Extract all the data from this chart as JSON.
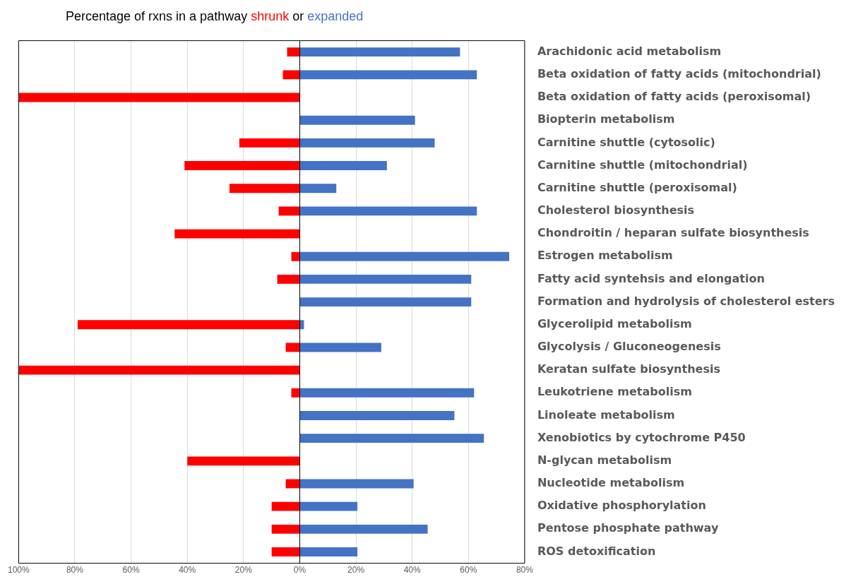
{
  "chart_data": {
    "type": "bar",
    "orientation": "horizontal",
    "stacked": true,
    "title": "Percentage of rxns in a pathway",
    "annotations": [
      "or"
    ],
    "legend": "top",
    "categories": [
      "Arachidonic acid metabolism",
      "Beta oxidation of fatty acids (mitochondrial)",
      "Beta oxidation of fatty acids (peroxisomal)",
      "Biopterin metabolism",
      "Carnitine shuttle (cytosolic)",
      "Carnitine shuttle (mitochondrial)",
      "Carnitine shuttle (peroxisomal)",
      "Cholesterol biosynthesis",
      "Chondroitin / heparan sulfate biosynthesis",
      "Estrogen metabolism",
      "Fatty acid syntehsis and elongation",
      "Formation and hydrolysis of cholesterol esters",
      "Glycerolipid metabolism",
      "Glycolysis / Gluconeogenesis",
      "Keratan sulfate biosynthesis",
      "Leukotriene metabolism",
      "Linoleate metabolism",
      "Xenobiotics by cytochrome P450",
      "N-glycan metabolism",
      "Nucleotide metabolism",
      "Oxidative phosphorylation",
      "Pentose phosphate pathway",
      "ROS detoxification"
    ],
    "series": [
      {
        "name": "shrunk",
        "color": "#ff0000",
        "values": [
          -4.5,
          -6,
          -100,
          null,
          -21.5,
          -41,
          -25,
          -7.5,
          -44.5,
          -3,
          -8,
          null,
          -79,
          -5,
          -100,
          -3,
          null,
          null,
          -40,
          -5,
          -10,
          -10,
          -10
        ]
      },
      {
        "name": "expanded",
        "color": "#4472c4",
        "values": [
          57,
          63,
          null,
          41,
          48,
          31,
          13,
          63,
          null,
          74.5,
          61,
          61,
          1.5,
          29,
          null,
          62,
          55,
          65.5,
          null,
          40.5,
          20.5,
          45.5,
          20.5
        ]
      }
    ],
    "xlim": [
      -100,
      80
    ],
    "xticks": [
      {
        "value": -100,
        "label": "100%"
      },
      {
        "value": -80,
        "label": "80%"
      },
      {
        "value": -60,
        "label": "60%"
      },
      {
        "value": -40,
        "label": "40%"
      },
      {
        "value": -20,
        "label": "20%"
      },
      {
        "value": 0,
        "label": "0%"
      },
      {
        "value": 20,
        "label": "20%"
      },
      {
        "value": 40,
        "label": "40%"
      },
      {
        "value": 60,
        "label": "60%"
      },
      {
        "value": 80,
        "label": "80%"
      }
    ],
    "grid": "x"
  }
}
